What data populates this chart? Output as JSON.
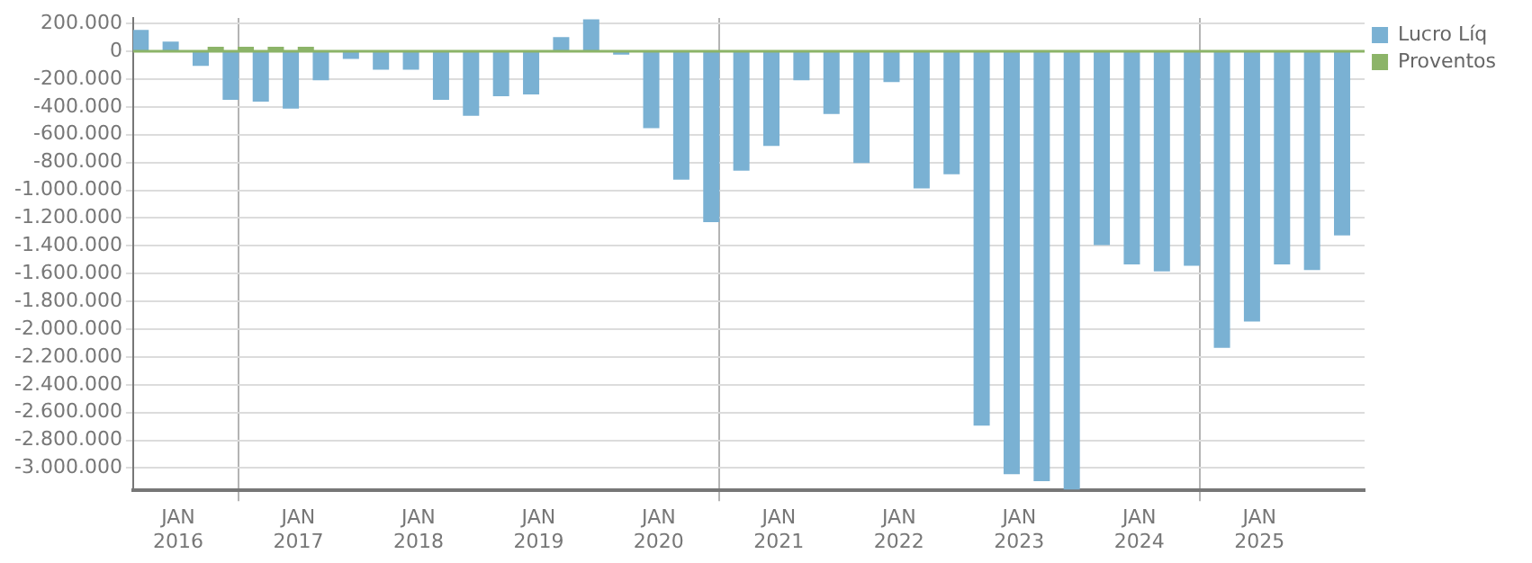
{
  "chart_data": {
    "type": "bar",
    "categories": [
      null,
      "JAN 2016",
      null,
      null,
      null,
      "JAN 2017",
      null,
      null,
      null,
      "JAN 2018",
      null,
      null,
      null,
      "JAN 2019",
      null,
      null,
      null,
      "JAN 2020",
      null,
      null,
      null,
      "JAN 2021",
      null,
      null,
      null,
      "JAN 2022",
      null,
      null,
      null,
      "JAN 2023",
      null,
      null,
      null,
      "JAN 2024",
      null,
      null,
      null,
      "JAN 2025",
      null,
      null,
      null
    ],
    "series": [
      {
        "name": "Lucro Líq",
        "color": "#7ab1d3",
        "values": [
          150000,
          65000,
          -100000,
          -345000,
          -357000,
          -408000,
          -204000,
          -51000,
          -128000,
          -128000,
          -345000,
          -460000,
          -319000,
          -306000,
          98000,
          226000,
          -20000,
          -549000,
          -919000,
          -1225000,
          -855000,
          -677000,
          -204000,
          -447000,
          -800000,
          -217000,
          -983000,
          -881000,
          -2690000,
          -3040000,
          -3090000,
          -3150000,
          -1390000,
          -1530000,
          -1580000,
          -1540000,
          -2130000,
          -1940000,
          -1530000,
          -1570000,
          -1320000
        ]
      },
      {
        "name": "Proventos",
        "color": "#8cb468",
        "values": [
          null,
          null,
          28000,
          28000,
          28000,
          28000,
          null,
          null,
          null,
          null,
          null,
          null,
          null,
          null,
          null,
          null,
          null,
          null,
          null,
          null,
          null,
          null,
          null,
          null,
          null,
          null,
          null,
          null,
          null,
          null,
          null,
          null,
          null,
          null,
          null,
          null,
          null,
          null,
          null,
          null,
          null
        ]
      }
    ],
    "ylim": [
      -3160000,
      240000
    ],
    "yticks": [
      {
        "value": 200000,
        "label": "200.000"
      },
      0,
      {
        "value": -200000,
        "label": "-200.000"
      },
      {
        "value": -400000,
        "label": "-400.000"
      },
      {
        "value": -600000,
        "label": "-600.000"
      },
      {
        "value": -800000,
        "label": "-800.000"
      },
      {
        "value": -1000000,
        "label": "-1.000.000"
      },
      {
        "value": -1200000,
        "label": "-1.200.000"
      },
      {
        "value": -1400000,
        "label": "-1.400.000"
      },
      {
        "value": -1600000,
        "label": "-1.600.000"
      },
      {
        "value": -1800000,
        "label": "-1.800.000"
      },
      {
        "value": -2000000,
        "label": "-2.000.000"
      },
      {
        "value": -2200000,
        "label": "-2.200.000"
      },
      {
        "value": -2400000,
        "label": "-2.400.000"
      },
      {
        "value": -2600000,
        "label": "-2.600.000"
      },
      {
        "value": -2800000,
        "label": "-2.800.000"
      },
      {
        "value": -3000000,
        "label": "-3.000.000"
      }
    ],
    "ref_lines": [
      {
        "axis": "y",
        "value": 0,
        "color": "#8cb468"
      }
    ],
    "grid": true,
    "legend": "top right"
  }
}
